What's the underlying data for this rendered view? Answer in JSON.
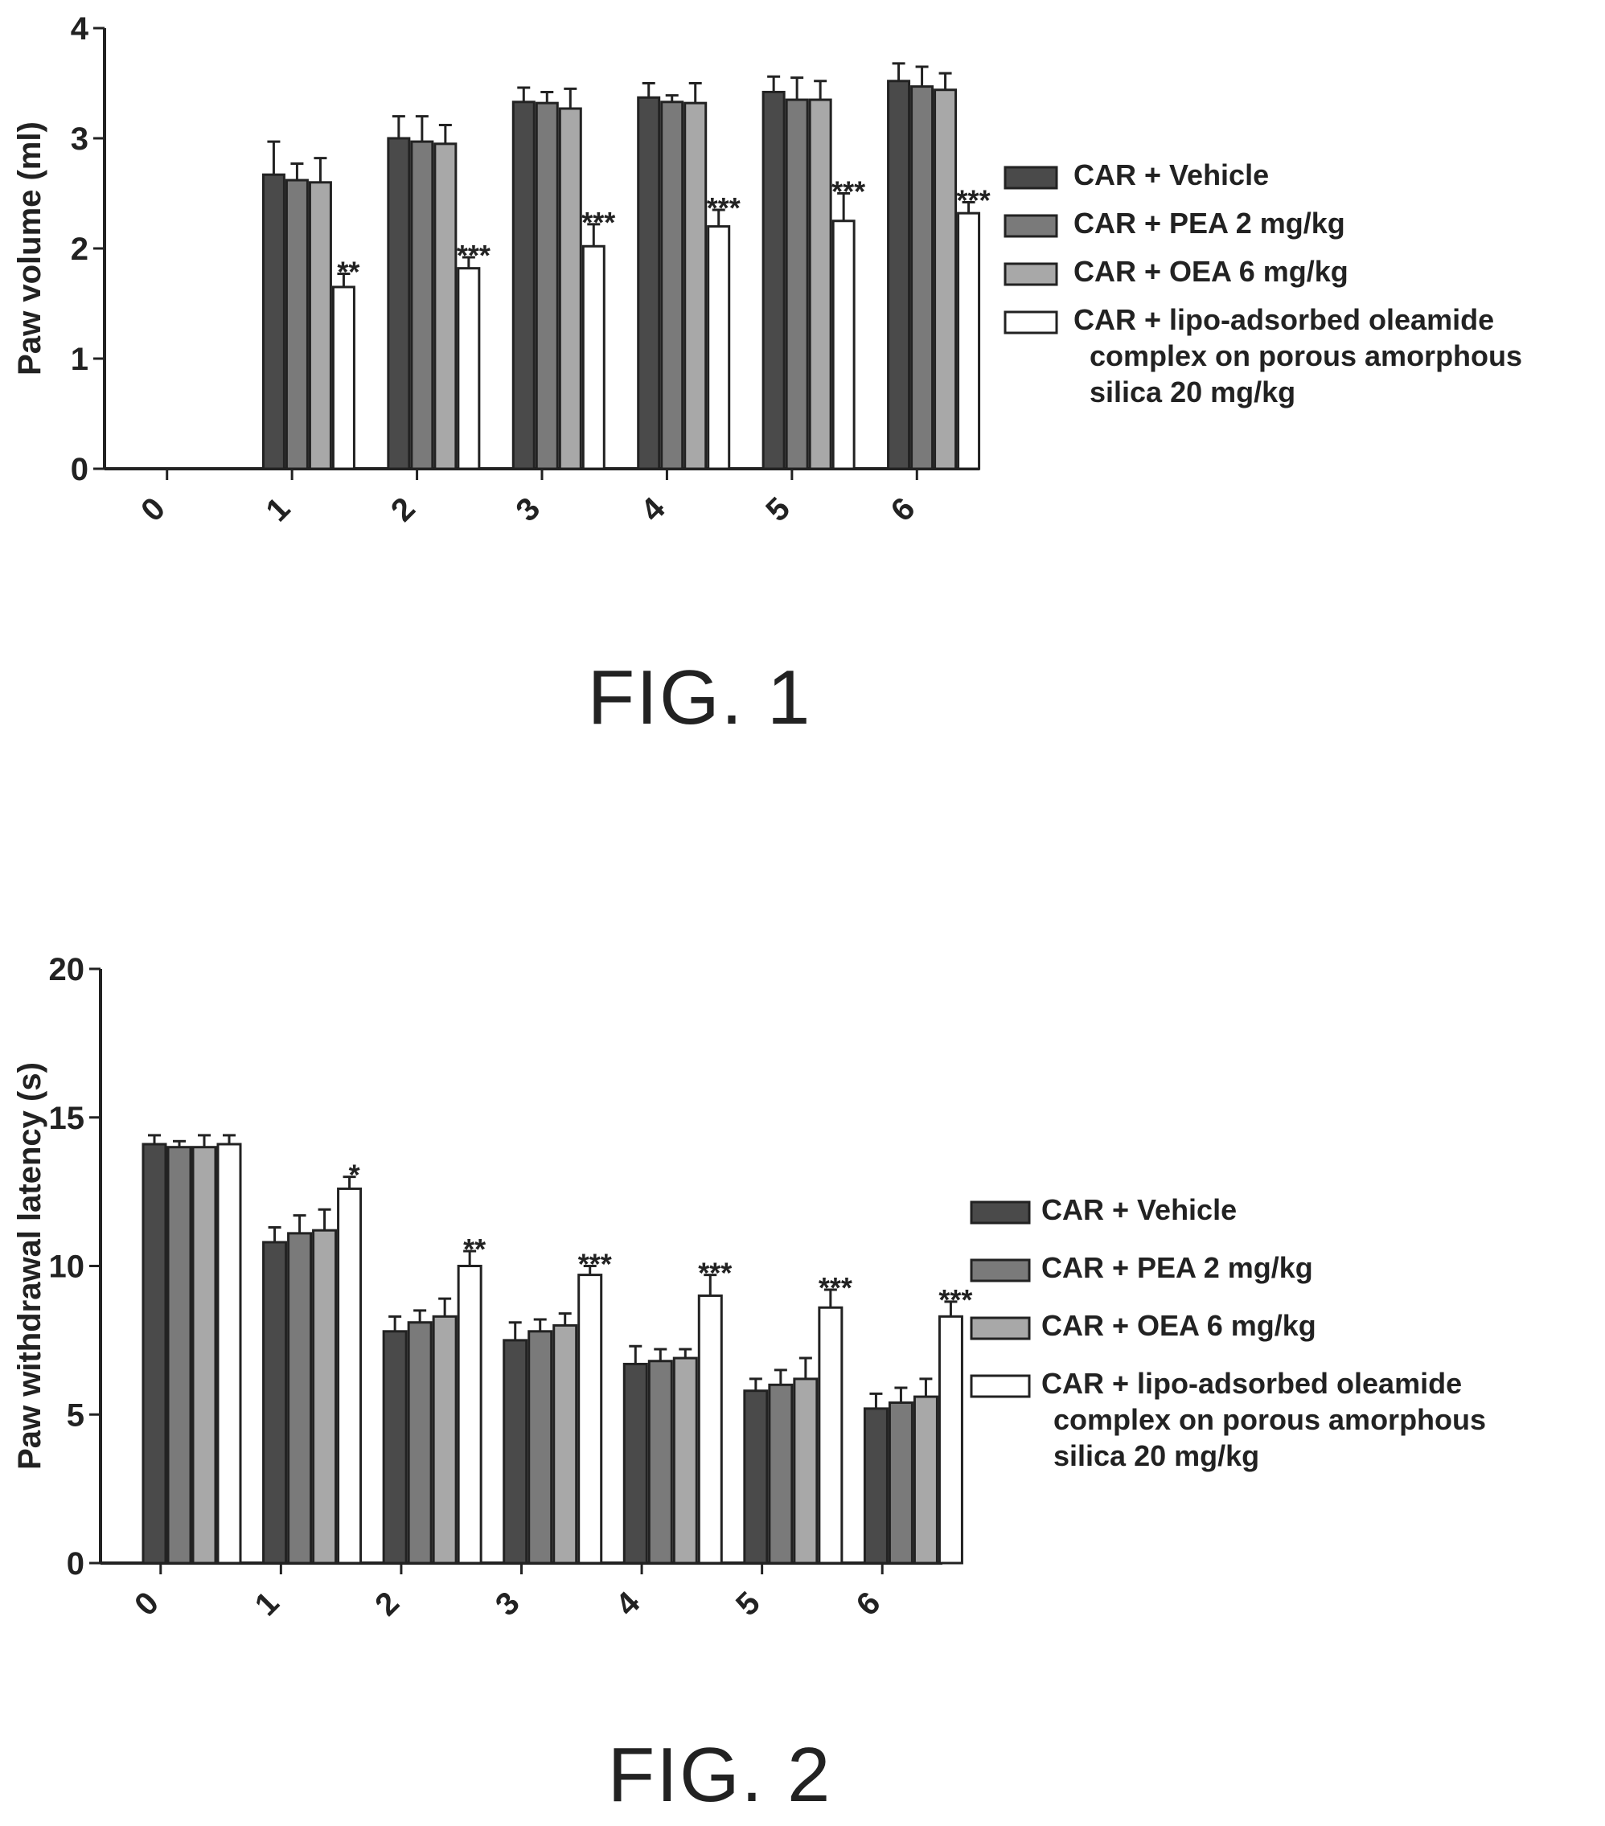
{
  "figures": [
    {
      "caption": "FIG. 1"
    },
    {
      "caption": "FIG. 2"
    }
  ],
  "colors": {
    "CAR + Vehicle": "#4a4a4a",
    "CAR + PEA 2 mg/kg": "#7a7a7a",
    "CAR + OEA 6 mg/kg": "#a8a8a8",
    "CAR + lipo-adsorbed oleamide complex on porous amorphous silica 20 mg/kg": "#ffffff"
  },
  "chart_data": [
    {
      "type": "bar",
      "title": "",
      "xlabel": "",
      "ylabel": "Paw volume (ml)",
      "ylim": [
        0,
        4
      ],
      "yticks": [
        0,
        1,
        2,
        3,
        4
      ],
      "categories": [
        "0",
        "1",
        "2",
        "3",
        "4",
        "5",
        "6"
      ],
      "legend_position": "right",
      "series": [
        {
          "name": "CAR + Vehicle",
          "legend_lines": [
            "CAR + Vehicle"
          ],
          "values": [
            0,
            2.67,
            3.0,
            3.33,
            3.37,
            3.42,
            3.52
          ],
          "errors": [
            0,
            0.3,
            0.2,
            0.13,
            0.13,
            0.14,
            0.16
          ]
        },
        {
          "name": "CAR + PEA 2 mg/kg",
          "legend_lines": [
            "CAR + PEA 2 mg/kg"
          ],
          "values": [
            0,
            2.62,
            2.97,
            3.32,
            3.33,
            3.35,
            3.47
          ],
          "errors": [
            0,
            0.15,
            0.23,
            0.1,
            0.06,
            0.2,
            0.18
          ]
        },
        {
          "name": "CAR + OEA 6 mg/kg",
          "legend_lines": [
            "CAR + OEA 6 mg/kg"
          ],
          "values": [
            0,
            2.6,
            2.95,
            3.27,
            3.32,
            3.35,
            3.44
          ],
          "errors": [
            0,
            0.22,
            0.17,
            0.18,
            0.18,
            0.17,
            0.15
          ]
        },
        {
          "name": "CAR + lipo-adsorbed oleamide complex on porous amorphous silica 20 mg/kg",
          "legend_lines": [
            "CAR + lipo-adsorbed oleamide",
            "complex  on porous amorphous",
            "silica 20 mg/kg"
          ],
          "values": [
            0,
            1.65,
            1.82,
            2.02,
            2.2,
            2.25,
            2.32
          ],
          "errors": [
            0,
            0.12,
            0.1,
            0.2,
            0.15,
            0.25,
            0.1
          ],
          "annotations": [
            "",
            "**",
            "***",
            "***",
            "***",
            "***",
            "***"
          ]
        }
      ]
    },
    {
      "type": "bar",
      "title": "",
      "xlabel": "",
      "ylabel": "Paw withdrawal latency (s)",
      "ylim": [
        0,
        20
      ],
      "yticks": [
        0,
        5,
        10,
        15,
        20
      ],
      "categories": [
        "0",
        "1",
        "2",
        "3",
        "4",
        "5",
        "6"
      ],
      "legend_position": "right",
      "series": [
        {
          "name": "CAR + Vehicle",
          "legend_lines": [
            "CAR + Vehicle"
          ],
          "values": [
            14.1,
            10.8,
            7.8,
            7.5,
            6.7,
            5.8,
            5.2
          ],
          "errors": [
            0.3,
            0.5,
            0.5,
            0.6,
            0.6,
            0.4,
            0.5
          ]
        },
        {
          "name": "CAR + PEA 2 mg/kg",
          "legend_lines": [
            "CAR + PEA 2 mg/kg"
          ],
          "values": [
            14.0,
            11.1,
            8.1,
            7.8,
            6.8,
            6.0,
            5.4
          ],
          "errors": [
            0.2,
            0.6,
            0.4,
            0.4,
            0.4,
            0.5,
            0.5
          ]
        },
        {
          "name": "CAR + OEA 6 mg/kg",
          "legend_lines": [
            "CAR + OEA 6 mg/kg"
          ],
          "values": [
            14.0,
            11.2,
            8.3,
            8.0,
            6.9,
            6.2,
            5.6
          ],
          "errors": [
            0.4,
            0.7,
            0.6,
            0.4,
            0.3,
            0.7,
            0.6
          ]
        },
        {
          "name": "CAR + lipo-adsorbed oleamide complex on porous amorphous silica 20 mg/kg",
          "legend_lines": [
            "CAR + lipo-adsorbed oleamide",
            "complex  on porous amorphous",
            "silica 20 mg/kg"
          ],
          "values": [
            14.1,
            12.6,
            10.0,
            9.7,
            9.0,
            8.6,
            8.3
          ],
          "errors": [
            0.3,
            0.4,
            0.5,
            0.3,
            0.7,
            0.6,
            0.5
          ],
          "annotations": [
            "",
            "*",
            "**",
            "***",
            "***",
            "***",
            "***"
          ]
        }
      ]
    }
  ]
}
